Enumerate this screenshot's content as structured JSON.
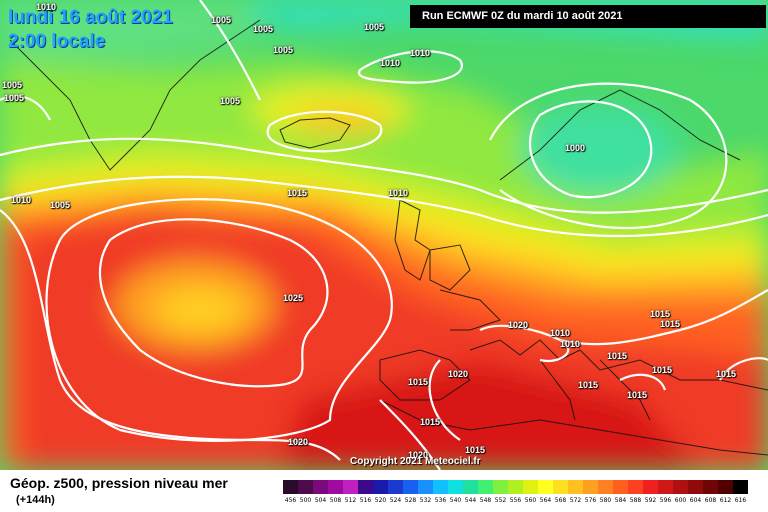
{
  "map": {
    "date_line": "lundi 16 août 2021",
    "time_line": "2:00 locale",
    "run_info": "Run ECMWF 0Z du mardi 10 août 2021",
    "copyright": "Copyright 2021 Meteociel.fr"
  },
  "isobar_labels": [
    "1010",
    "1005",
    "1005",
    "1005",
    "1005",
    "1010",
    "1010",
    "1005",
    "1005",
    "1005",
    "1000",
    "1010",
    "1005",
    "1015",
    "1010",
    "1025",
    "1020",
    "1010",
    "1010",
    "1015",
    "1015",
    "1015",
    "1015",
    "1015",
    "1015",
    "1020",
    "1015",
    "1020",
    "1015",
    "1015",
    "1015",
    "1020"
  ],
  "legend": {
    "title": "Géop. z500, pression niveau mer",
    "subtitle": "(+144h)",
    "scale_values": [
      "456",
      "500",
      "504",
      "508",
      "512",
      "516",
      "520",
      "524",
      "528",
      "532",
      "536",
      "540",
      "544",
      "548",
      "552",
      "556",
      "560",
      "564",
      "568",
      "572",
      "576",
      "580",
      "584",
      "588",
      "592",
      "596",
      "600",
      "604",
      "608",
      "612",
      "616"
    ],
    "scale_colors": [
      "#2a0a2a",
      "#4d0a4d",
      "#7a0a7a",
      "#a00aa0",
      "#c020c0",
      "#3a0a8a",
      "#1a1aaa",
      "#1a3ad0",
      "#1a60f0",
      "#1a90ff",
      "#10c0ff",
      "#10e0e0",
      "#20e0a0",
      "#40f070",
      "#80f040",
      "#b0f020",
      "#e0f010",
      "#ffff20",
      "#ffe020",
      "#ffc020",
      "#ffa020",
      "#ff8020",
      "#ff6020",
      "#ff4020",
      "#f02020",
      "#d01818",
      "#b01010",
      "#900a0a",
      "#700505",
      "#500000",
      "#000000"
    ]
  }
}
